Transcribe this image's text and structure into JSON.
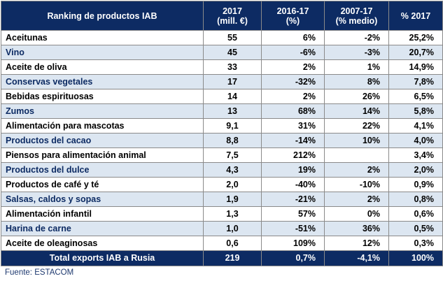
{
  "table": {
    "headers": [
      {
        "line1": "Ranking de productos IAB",
        "line2": ""
      },
      {
        "line1": "2017",
        "line2": "(mill. €)"
      },
      {
        "line1": "2016-17",
        "line2": "(%)"
      },
      {
        "line1": "2007-17",
        "line2": "(% medio)"
      },
      {
        "line1": "% 2017",
        "line2": ""
      }
    ],
    "rows": [
      [
        "Aceitunas",
        "55",
        "6%",
        "-2%",
        "25,2%"
      ],
      [
        "Vino",
        "45",
        "-6%",
        "-3%",
        "20,7%"
      ],
      [
        "Aceite de oliva",
        "33",
        "2%",
        "1%",
        "14,9%"
      ],
      [
        "Conservas vegetales",
        "17",
        "-32%",
        "8%",
        "7,8%"
      ],
      [
        "Bebidas espirituosas",
        "14",
        "2%",
        "26%",
        "6,5%"
      ],
      [
        "Zumos",
        "13",
        "68%",
        "14%",
        "5,8%"
      ],
      [
        "Alimentación para mascotas",
        "9,1",
        "31%",
        "22%",
        "4,1%"
      ],
      [
        "Productos del cacao",
        "8,8",
        "-14%",
        "10%",
        "4,0%"
      ],
      [
        "Piensos para alimentación animal",
        "7,5",
        "212%",
        "",
        "3,4%"
      ],
      [
        "Productos del dulce",
        "4,3",
        "19%",
        "2%",
        "2,0%"
      ],
      [
        "Productos de café y té",
        "2,0",
        "-40%",
        "-10%",
        "0,9%"
      ],
      [
        "Salsas, caldos y sopas",
        "1,9",
        "-21%",
        "2%",
        "0,8%"
      ],
      [
        "Alimentación infantil",
        "1,3",
        "57%",
        "0%",
        "0,6%"
      ],
      [
        "Harina de carne",
        "1,0",
        "-51%",
        "36%",
        "0,5%"
      ],
      [
        "Aceite de oleaginosas",
        "0,6",
        "109%",
        "12%",
        "0,3%"
      ]
    ],
    "total": [
      "Total exports IAB a Rusia",
      "219",
      "0,7%",
      "-4,1%",
      "100%"
    ]
  },
  "source": "Fuente: ESTACOM",
  "colors": {
    "header_bg": "#0d2b63",
    "stripe_bg": "#dce6f1",
    "header_text": "#ffffff"
  }
}
